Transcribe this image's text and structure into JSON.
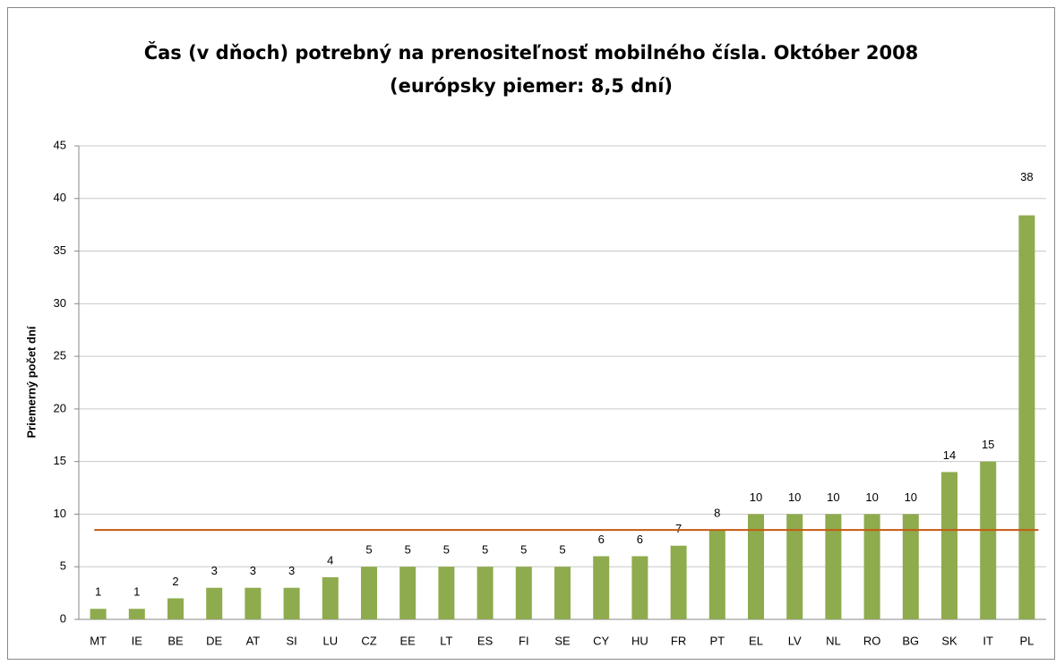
{
  "chart_data": {
    "type": "bar",
    "title": [
      "Čas (v dňoch) potrebný na prenositeľnosť mobilného čísla. Október 2008",
      "(európsky piemer: 8,5 dní)"
    ],
    "y_label": "Priemerný počet dní",
    "categories": [
      "MT",
      "IE",
      "BE",
      "DE",
      "AT",
      "SI",
      "LU",
      "CZ",
      "EE",
      "LT",
      "ES",
      "FI",
      "SE",
      "CY",
      "HU",
      "FR",
      "PT",
      "EL",
      "LV",
      "NL",
      "RO",
      "BG",
      "SK",
      "IT",
      "PL"
    ],
    "values": [
      1,
      1,
      2,
      3,
      3,
      3,
      4,
      5,
      5,
      5,
      5,
      5,
      5,
      6,
      6,
      7,
      8.5,
      10,
      10,
      10,
      10,
      10,
      14,
      15,
      38.4
    ],
    "value_labels": [
      "1",
      "1",
      "2",
      "3",
      "3",
      "3",
      "4",
      "5",
      "5",
      "5",
      "5",
      "5",
      "5",
      "6",
      "6",
      "7",
      "8",
      "10",
      "10",
      "10",
      "10",
      "10",
      "14",
      "15",
      "38"
    ],
    "color": "#8eab4e",
    "reference_line": {
      "value": 8.5,
      "color": "#c55a11"
    },
    "ylim": [
      0,
      45
    ],
    "yticks": [
      0,
      5,
      10,
      15,
      20,
      25,
      30,
      35,
      40,
      45
    ],
    "grid": true
  }
}
